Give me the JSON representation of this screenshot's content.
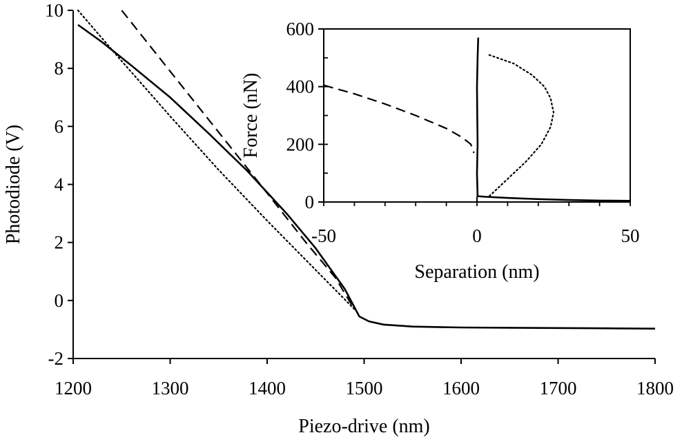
{
  "chart_data": [
    {
      "type": "line",
      "role": "main",
      "xlabel": "Piezo-drive (nm)",
      "ylabel": "Photodiode (V)",
      "xlim": [
        1200,
        1800
      ],
      "ylim": [
        -2,
        10
      ],
      "xticks": [
        "1200",
        "1300",
        "1400",
        "1500",
        "1600",
        "1700",
        "1800"
      ],
      "yticks": [
        "-2",
        "0",
        "2",
        "4",
        "6",
        "8",
        "10"
      ],
      "grid": false,
      "legend": "none",
      "series": [
        {
          "style": "solid",
          "color": "#000000",
          "x": [
            1205,
            1230,
            1260,
            1300,
            1340,
            1380,
            1420,
            1450,
            1480,
            1495,
            1505,
            1520,
            1550,
            1600,
            1650,
            1700,
            1750,
            1800
          ],
          "y": [
            9.5,
            8.9,
            8.1,
            7.0,
            5.75,
            4.45,
            3.0,
            1.8,
            0.4,
            -0.55,
            -0.72,
            -0.83,
            -0.9,
            -0.93,
            -0.94,
            -0.95,
            -0.96,
            -0.97
          ]
        },
        {
          "style": "dashed",
          "color": "#000000",
          "x": [
            1250,
            1300,
            1350,
            1400,
            1440,
            1470,
            1490
          ],
          "y": [
            10.0,
            7.9,
            5.8,
            3.7,
            2.0,
            0.8,
            -0.3
          ]
        },
        {
          "style": "dotted",
          "color": "#000000",
          "x": [
            1205,
            1250,
            1300,
            1350,
            1400,
            1450,
            1490
          ],
          "y": [
            10.0,
            8.25,
            6.35,
            4.5,
            2.75,
            1.05,
            -0.3
          ]
        }
      ]
    },
    {
      "type": "line",
      "role": "inset",
      "xlabel": "Separation (nm)",
      "ylabel": "Force (nN)",
      "xlim": [
        -50,
        50
      ],
      "ylim": [
        0,
        600
      ],
      "xticks": [
        "-50",
        "0",
        "50"
      ],
      "yticks": [
        "0",
        "200",
        "400",
        "600"
      ],
      "grid": false,
      "legend": "none",
      "series": [
        {
          "style": "dashed",
          "color": "#000000",
          "x": [
            -50,
            -40,
            -30,
            -20,
            -10,
            -5,
            -2,
            -1
          ],
          "y": [
            405,
            375,
            340,
            300,
            255,
            225,
            200,
            170
          ]
        },
        {
          "style": "solid",
          "color": "#000000",
          "x": [
            0.4,
            0.2,
            0.0,
            0.1,
            0.2,
            0.0,
            0.2,
            3,
            10,
            20,
            30,
            40,
            50
          ],
          "y": [
            570,
            500,
            400,
            300,
            200,
            100,
            20,
            18,
            14,
            10,
            7,
            5,
            4
          ]
        },
        {
          "style": "dotted",
          "color": "#000000",
          "x": [
            4,
            12,
            18,
            22,
            24,
            25,
            24,
            21,
            16,
            10,
            4
          ],
          "y": [
            510,
            480,
            440,
            400,
            360,
            310,
            260,
            200,
            140,
            80,
            20
          ]
        }
      ]
    }
  ]
}
